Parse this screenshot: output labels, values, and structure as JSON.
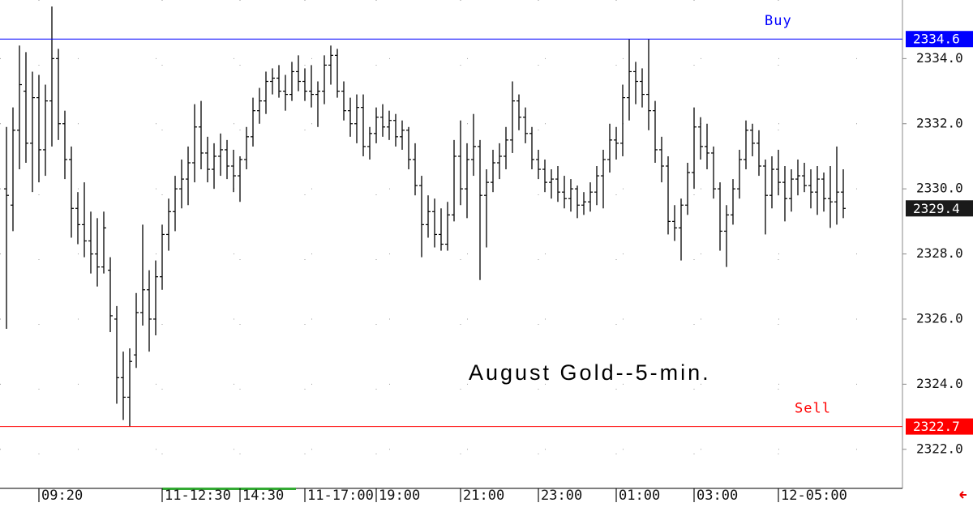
{
  "chart_data": {
    "type": "ohlc",
    "title": "August Gold--5-min.",
    "ylim": [
      2320.8,
      2335.8
    ],
    "yticks": [
      {
        "value": 2322,
        "label": "2322.0"
      },
      {
        "value": 2324,
        "label": "2324.0"
      },
      {
        "value": 2326,
        "label": "2326.0"
      },
      {
        "value": 2328,
        "label": "2328.0"
      },
      {
        "value": 2330,
        "label": "2330.0"
      },
      {
        "value": 2332,
        "label": "2332.0"
      },
      {
        "value": 2334,
        "label": "2334.0"
      }
    ],
    "grid": true,
    "color": "#000000",
    "categories": [
      null,
      null,
      null,
      null,
      null,
      "09:20",
      null,
      null,
      null,
      null,
      null,
      null,
      null,
      null,
      null,
      null,
      null,
      null,
      null,
      null,
      null,
      null,
      null,
      null,
      "11-12:30",
      null,
      null,
      null,
      null,
      null,
      null,
      null,
      null,
      null,
      null,
      null,
      "14:30",
      null,
      null,
      null,
      null,
      null,
      null,
      null,
      null,
      null,
      "11-17:00",
      null,
      null,
      null,
      null,
      null,
      null,
      null,
      null,
      null,
      null,
      "19:00",
      null,
      null,
      null,
      null,
      null,
      null,
      null,
      null,
      null,
      null,
      null,
      null,
      "21:00",
      null,
      null,
      null,
      null,
      null,
      null,
      null,
      null,
      null,
      null,
      null,
      "23:00",
      null,
      null,
      null,
      null,
      null,
      null,
      null,
      null,
      null,
      null,
      null,
      "01:00",
      null,
      null,
      null,
      null,
      null,
      null,
      null,
      null,
      null,
      null,
      null,
      "03:00",
      null,
      null,
      null,
      null,
      null,
      null,
      null,
      null,
      null,
      null,
      null,
      null,
      "12-05:00",
      null,
      null,
      null,
      null,
      null,
      null,
      null,
      null,
      null,
      null
    ],
    "ohlc": [
      [
        2330,
        2331.9,
        2325.7,
        2329.8
      ],
      [
        2329.5,
        2332.5,
        2328.7,
        2331.8
      ],
      [
        2331.8,
        2334.4,
        2330.6,
        2333.2
      ],
      [
        2333,
        2334.2,
        2330.8,
        2331.4
      ],
      [
        2331.4,
        2333.6,
        2329.9,
        2332.8
      ],
      [
        2332.8,
        2333.5,
        2330.2,
        2331.2
      ],
      [
        2331.2,
        2333.2,
        2330.4,
        2332.7
      ],
      [
        2332.7,
        2335.6,
        2331.3,
        2334
      ],
      [
        2334,
        2334.3,
        2331.5,
        2332
      ],
      [
        2332,
        2332.4,
        2330.3,
        2330.9
      ],
      [
        2330.9,
        2331.3,
        2328.5,
        2329.4
      ],
      [
        2329.4,
        2329.9,
        2328.3,
        2328.9
      ],
      [
        2328.9,
        2330.2,
        2327.9,
        2328.4
      ],
      [
        2328.4,
        2329.3,
        2327.4,
        2328
      ],
      [
        2328,
        2329.1,
        2327,
        2327.6
      ],
      [
        2327.6,
        2329.3,
        2327.4,
        2328.8
      ],
      [
        2327.5,
        2327.9,
        2325.6,
        2326.1
      ],
      [
        2326,
        2326.4,
        2323.4,
        2324.2
      ],
      [
        2324.2,
        2325,
        2322.9,
        2323.6
      ],
      [
        2323.6,
        2325.1,
        2322.7,
        2324.7
      ],
      [
        2324.9,
        2326.8,
        2324.5,
        2326.2
      ],
      [
        2326.2,
        2328.9,
        2325.8,
        2326.9
      ],
      [
        2326.9,
        2327.5,
        2325,
        2326
      ],
      [
        2326,
        2327.8,
        2325.5,
        2327.3
      ],
      [
        2327.3,
        2328.9,
        2326.9,
        2328.6
      ],
      [
        2328.6,
        2329.7,
        2328.1,
        2329.3
      ],
      [
        2329.3,
        2330.4,
        2328.7,
        2330
      ],
      [
        2330,
        2330.9,
        2329.4,
        2330.3
      ],
      [
        2330.3,
        2331.3,
        2329.5,
        2330.8
      ],
      [
        2330.8,
        2332.6,
        2330.2,
        2331.9
      ],
      [
        2331.9,
        2332.7,
        2330.6,
        2331.1
      ],
      [
        2331.1,
        2331.6,
        2330.2,
        2330.6
      ],
      [
        2330.6,
        2331.4,
        2330,
        2331
      ],
      [
        2331,
        2331.7,
        2330.4,
        2331.2
      ],
      [
        2331.2,
        2331.5,
        2330.3,
        2330.7
      ],
      [
        2330.7,
        2331.2,
        2329.9,
        2330.4
      ],
      [
        2330.4,
        2331,
        2329.6,
        2330.9
      ],
      [
        2330.9,
        2331.9,
        2330.6,
        2331.6
      ],
      [
        2331.6,
        2332.8,
        2331.3,
        2332.4
      ],
      [
        2332.4,
        2333.1,
        2332,
        2332.7
      ],
      [
        2332.7,
        2333.6,
        2332.3,
        2333.3
      ],
      [
        2333.3,
        2333.7,
        2332.9,
        2333.4
      ],
      [
        2333.4,
        2333.8,
        2332.8,
        2333
      ],
      [
        2333,
        2333.5,
        2332.4,
        2332.9
      ],
      [
        2332.9,
        2333.9,
        2332.7,
        2333.6
      ],
      [
        2333.6,
        2334.1,
        2333,
        2333.3
      ],
      [
        2333.3,
        2333.7,
        2332.7,
        2333
      ],
      [
        2333,
        2333.8,
        2332.5,
        2332.9
      ],
      [
        2332.9,
        2333.3,
        2331.9,
        2333
      ],
      [
        2333,
        2334.1,
        2332.6,
        2333.8
      ],
      [
        2333.8,
        2334.4,
        2333.2,
        2334.1
      ],
      [
        2334.1,
        2334.3,
        2332.8,
        2333
      ],
      [
        2333,
        2333.3,
        2332.1,
        2332.4
      ],
      [
        2332.4,
        2332.8,
        2331.6,
        2332
      ],
      [
        2332,
        2332.9,
        2331.4,
        2332.5
      ],
      [
        2332.5,
        2332.9,
        2331,
        2331.3
      ],
      [
        2331.3,
        2331.9,
        2330.9,
        2331.7
      ],
      [
        2331.7,
        2332.5,
        2331.4,
        2332.2
      ],
      [
        2332.2,
        2332.6,
        2331.6,
        2331.9
      ],
      [
        2331.9,
        2332.4,
        2331.5,
        2332.1
      ],
      [
        2332.1,
        2332.3,
        2331.3,
        2331.6
      ],
      [
        2331.6,
        2332.1,
        2331.2,
        2331.8
      ],
      [
        2331.8,
        2331.9,
        2330.6,
        2330.9
      ],
      [
        2330.9,
        2331.4,
        2329.8,
        2330.1
      ],
      [
        2330.1,
        2330.4,
        2327.9,
        2328.9
      ],
      [
        2328.9,
        2329.8,
        2328.5,
        2329.3
      ],
      [
        2329.3,
        2329.7,
        2328.2,
        2328.6
      ],
      [
        2328.6,
        2329.4,
        2328.1,
        2328.3
      ],
      [
        2328.3,
        2329.6,
        2328.1,
        2329.2
      ],
      [
        2329.2,
        2331.5,
        2329,
        2331
      ],
      [
        2331,
        2332.1,
        2329.5,
        2330
      ],
      [
        2330,
        2331.4,
        2329.1,
        2330.9
      ],
      [
        2330.9,
        2332.3,
        2330.4,
        2331.3
      ],
      [
        2331.3,
        2331.5,
        2327.2,
        2329.8
      ],
      [
        2329.8,
        2330.6,
        2328.2,
        2330.2
      ],
      [
        2330.2,
        2331.2,
        2329.9,
        2330.8
      ],
      [
        2330.8,
        2331.4,
        2330.3,
        2331
      ],
      [
        2331,
        2331.9,
        2330.6,
        2331.5
      ],
      [
        2331.5,
        2333.3,
        2331.1,
        2332.7
      ],
      [
        2332.7,
        2332.9,
        2331.8,
        2332.2
      ],
      [
        2332.2,
        2332.5,
        2331.4,
        2331.7
      ],
      [
        2331.7,
        2331.9,
        2330.6,
        2330.9
      ],
      [
        2330.9,
        2331.2,
        2330.3,
        2330.6
      ],
      [
        2330.6,
        2330.9,
        2329.9,
        2330.2
      ],
      [
        2330.2,
        2330.6,
        2329.7,
        2330.3
      ],
      [
        2330.3,
        2330.7,
        2329.6,
        2329.9
      ],
      [
        2329.9,
        2330.4,
        2329.4,
        2329.7
      ],
      [
        2329.7,
        2330.3,
        2329.3,
        2330
      ],
      [
        2330,
        2330.1,
        2329.1,
        2329.5
      ],
      [
        2329.5,
        2329.9,
        2329.2,
        2329.6
      ],
      [
        2329.6,
        2330.2,
        2329.3,
        2329.9
      ],
      [
        2329.9,
        2330.7,
        2329.5,
        2330.4
      ],
      [
        2330.4,
        2331.2,
        2329.4,
        2330.9
      ],
      [
        2330.9,
        2332,
        2330.5,
        2331.5
      ],
      [
        2331.5,
        2331.9,
        2330.9,
        2331.4
      ],
      [
        2331.4,
        2333.2,
        2331,
        2332.8
      ],
      [
        2332.8,
        2334.6,
        2332.1,
        2333.6
      ],
      [
        2333.6,
        2333.9,
        2332.6,
        2333.3
      ],
      [
        2333.3,
        2333.7,
        2332.5,
        2332.9
      ],
      [
        2332.9,
        2334.6,
        2331.8,
        2332.4
      ],
      [
        2332.4,
        2332.7,
        2330.8,
        2331.2
      ],
      [
        2331.2,
        2331.6,
        2330.2,
        2330.7
      ],
      [
        2330.7,
        2331,
        2328.6,
        2329
      ],
      [
        2329,
        2329.5,
        2328.4,
        2328.8
      ],
      [
        2328.8,
        2329.7,
        2327.8,
        2329.5
      ],
      [
        2329.5,
        2330.8,
        2329.2,
        2330.5
      ],
      [
        2330.5,
        2332.5,
        2330,
        2331.9
      ],
      [
        2331.9,
        2332.2,
        2330.9,
        2331.3
      ],
      [
        2331.3,
        2332,
        2330.6,
        2331.1
      ],
      [
        2331.1,
        2331.3,
        2329.7,
        2330
      ],
      [
        2330,
        2330.2,
        2328.1,
        2328.7
      ],
      [
        2328.7,
        2329.5,
        2327.6,
        2329.2
      ],
      [
        2329.2,
        2330.3,
        2328.9,
        2330
      ],
      [
        2330,
        2331.2,
        2329.7,
        2330.9
      ],
      [
        2330.9,
        2332.1,
        2330.6,
        2331.8
      ],
      [
        2331.8,
        2332,
        2331,
        2331.4
      ],
      [
        2331.4,
        2331.8,
        2330.4,
        2330.7
      ],
      [
        2330.7,
        2330.9,
        2328.6,
        2329.8
      ],
      [
        2329.8,
        2331,
        2329.4,
        2330.6
      ],
      [
        2330.6,
        2331.2,
        2329.8,
        2330.2
      ],
      [
        2330.2,
        2330.7,
        2329,
        2329.7
      ],
      [
        2329.7,
        2330.6,
        2329.3,
        2330.3
      ],
      [
        2330.3,
        2330.9,
        2329.8,
        2330.4
      ],
      [
        2330.4,
        2330.8,
        2329.9,
        2330.1
      ],
      [
        2330.1,
        2330.6,
        2329.4,
        2329.9
      ],
      [
        2329.9,
        2330.7,
        2329.2,
        2330.3
      ],
      [
        2330.3,
        2330.5,
        2329.3,
        2329.7
      ],
      [
        2329.7,
        2330.7,
        2328.8,
        2329.6
      ],
      [
        2329.6,
        2331.3,
        2328.9,
        2329.9
      ],
      [
        2329.9,
        2330.6,
        2329.1,
        2329.4
      ]
    ],
    "hlines": [
      {
        "value": 2334.6,
        "name": "Buy",
        "color": "#0000ff"
      },
      {
        "value": 2322.7,
        "name": "Sell",
        "color": "#ff0000"
      }
    ],
    "last_price": {
      "value": 2329.4,
      "color": "#1a1a1a"
    }
  }
}
